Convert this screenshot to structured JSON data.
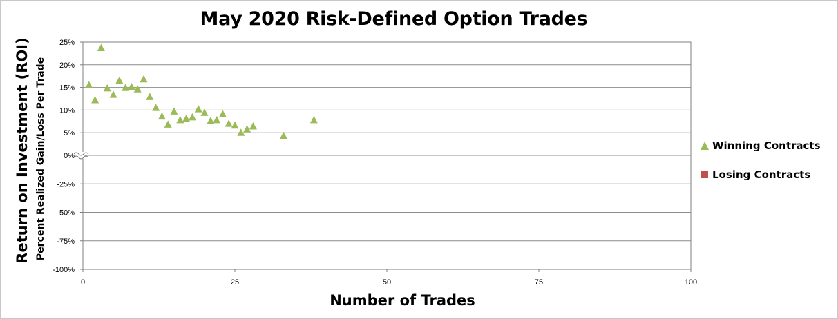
{
  "chart_data": {
    "type": "scatter",
    "title": "May 2020 Risk-Defined Option Trades",
    "xlabel": "Number of Trades",
    "ylabel": "Return on Investment (ROI)",
    "ylabel_sub": "Percent Realized Gain/Loss Per Trade",
    "xlim": [
      0,
      100
    ],
    "x_ticks": [
      0,
      25,
      50,
      75,
      100
    ],
    "x_tick_labels": [
      "0",
      "25",
      "50",
      "75",
      "100"
    ],
    "y_ticks_upper": [
      25,
      20,
      15,
      10,
      5,
      0
    ],
    "y_tick_labels_upper": [
      "25%",
      "20%",
      "15%",
      "10%",
      "5%",
      "0%"
    ],
    "y_ticks_lower": [
      -25,
      -50,
      -75,
      -100
    ],
    "y_tick_labels_lower": [
      "-25%",
      "-50%",
      "-75%",
      "-100%"
    ],
    "broken_axis_at": "0%",
    "grid": true,
    "legend_position": "right",
    "series": [
      {
        "name": "Winning Contracts",
        "color": "#9bbb59",
        "marker": "triangle",
        "points": [
          [
            1,
            15.5
          ],
          [
            2,
            12.2
          ],
          [
            3,
            23.7
          ],
          [
            4,
            14.8
          ],
          [
            5,
            13.4
          ],
          [
            6,
            16.5
          ],
          [
            7,
            14.9
          ],
          [
            8,
            15.1
          ],
          [
            9,
            14.6
          ],
          [
            10,
            16.8
          ],
          [
            11,
            12.9
          ],
          [
            12,
            10.5
          ],
          [
            13,
            8.6
          ],
          [
            14,
            6.8
          ],
          [
            15,
            9.7
          ],
          [
            16,
            7.8
          ],
          [
            17,
            8.1
          ],
          [
            18,
            8.4
          ],
          [
            19,
            10.2
          ],
          [
            20,
            9.4
          ],
          [
            21,
            7.6
          ],
          [
            22,
            7.8
          ],
          [
            23,
            9.1
          ],
          [
            24,
            7.0
          ],
          [
            25,
            6.6
          ],
          [
            26,
            5.0
          ],
          [
            27,
            5.8
          ],
          [
            28,
            6.4
          ],
          [
            33,
            4.3
          ],
          [
            38,
            7.8
          ]
        ]
      },
      {
        "name": "Losing Contracts",
        "color": "#c0504d",
        "marker": "square",
        "points": []
      }
    ]
  }
}
